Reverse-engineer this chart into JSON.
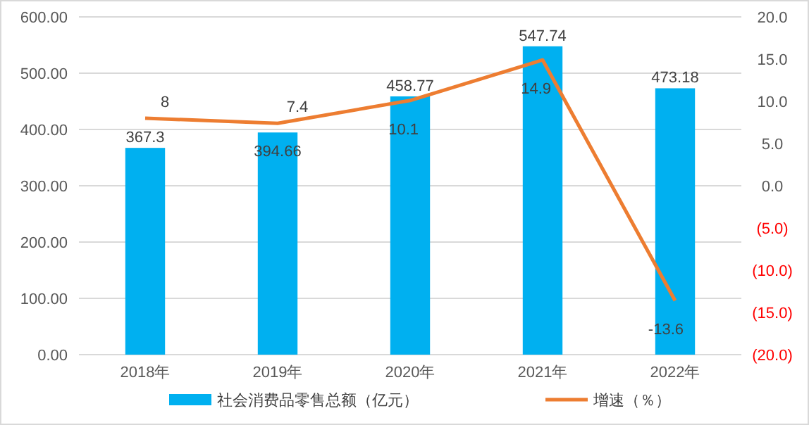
{
  "chart_data": {
    "type": "bar",
    "categories": [
      "2018年",
      "2019年",
      "2020年",
      "2021年",
      "2022年"
    ],
    "series": [
      {
        "name": "社会消费品零售总额（亿元）",
        "color": "#00b0f0",
        "values": [
          367.3,
          394.66,
          458.77,
          547.74,
          473.18
        ]
      },
      {
        "name": "增速（％）",
        "type": "line",
        "axis": "y2",
        "color": "#ed7d31",
        "values": [
          8,
          7.4,
          10.1,
          14.9,
          -13.6
        ]
      }
    ],
    "ylim": [
      0,
      600
    ],
    "yticks": [
      {
        "value": 0,
        "label": "0.00"
      },
      {
        "value": 100,
        "label": "100.00"
      },
      {
        "value": 200,
        "label": "200.00"
      },
      {
        "value": 300,
        "label": "300.00"
      },
      {
        "value": 400,
        "label": "400.00"
      },
      {
        "value": 500,
        "label": "500.00"
      },
      {
        "value": 600,
        "label": "600.00"
      }
    ],
    "y2lim": [
      -20,
      20
    ],
    "y2ticks": [
      {
        "value": -20,
        "label": "(20.0)"
      },
      {
        "value": -15,
        "label": "(15.0)"
      },
      {
        "value": -10,
        "label": "(10.0)"
      },
      {
        "value": -5,
        "label": "(5.0)"
      },
      {
        "value": 0,
        "label": "0.0"
      },
      {
        "value": 5,
        "label": "5.0"
      },
      {
        "value": 10,
        "label": "10.0"
      },
      {
        "value": 15,
        "label": "15.0"
      },
      {
        "value": 20,
        "label": "20.0"
      }
    ],
    "grid": "y",
    "legend": "bottom",
    "data_labels": true,
    "marker": "none"
  }
}
